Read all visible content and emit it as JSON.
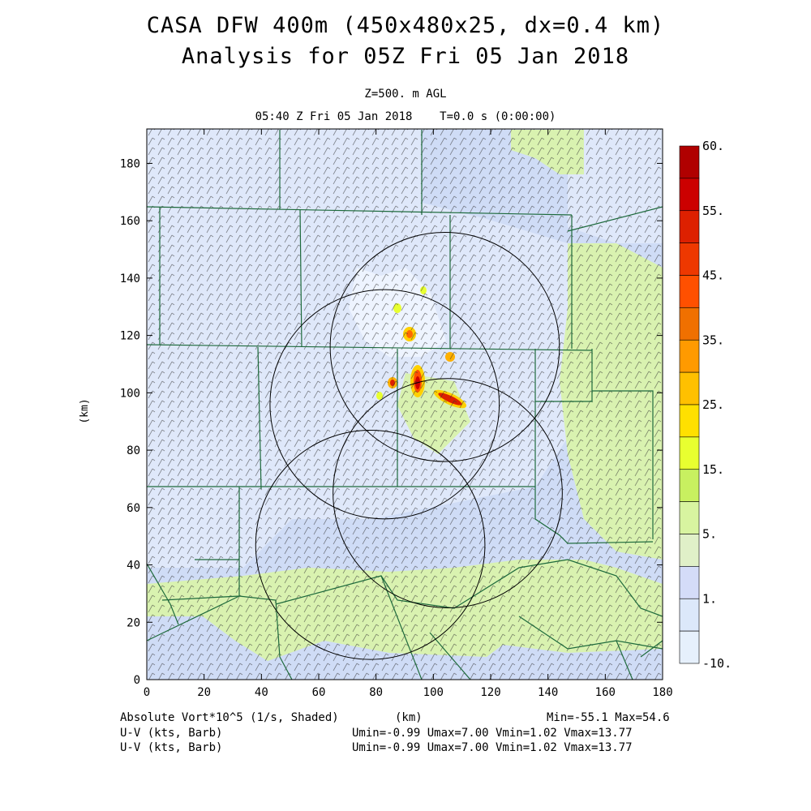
{
  "header": {
    "title_line1": "CASA DFW 400m (450x480x25, dx=0.4 km)",
    "title_line2": "Analysis for 05Z Fri 05 Jan 2018",
    "level": "Z=500. m AGL",
    "valid_time": "05:40 Z Fri 05 Jan 2018    T=0.0 s (0:00:00)"
  },
  "axes": {
    "x_ticks": [
      "0",
      "20",
      "40",
      "60",
      "80",
      "100",
      "120",
      "140",
      "160",
      "180"
    ],
    "y_ticks": [
      "0",
      "20",
      "40",
      "60",
      "80",
      "100",
      "120",
      "140",
      "160",
      "180"
    ],
    "xlabel": "(km)",
    "ylabel": "(km)",
    "xlim": [
      0,
      180
    ],
    "ylim": [
      0,
      192
    ]
  },
  "colorbar": {
    "labels": [
      "60.",
      "55.",
      "45.",
      "35.",
      "25.",
      "15.",
      "5.",
      "1.",
      "-10."
    ],
    "colors": [
      "#b00000",
      "#cc0000",
      "#dd2000",
      "#ee3800",
      "#ff5000",
      "#f07000",
      "#ff9a00",
      "#ffc000",
      "#ffe000",
      "#e8ff30",
      "#c8f060",
      "#d8f4a0",
      "#e0f0c8",
      "#d4dcf8",
      "#dce8fa",
      "#e6f0fc"
    ]
  },
  "footer": {
    "field": "Absolute Vort*10^5 (1/s, Shaded)",
    "unit": "(km)",
    "minmax": "Min=-55.1 Max=54.6",
    "uv_label_1": "U-V (kts, Barb)",
    "uv_label_2": "U-V (kts, Barb)",
    "uv_stats_1": "Umin=-0.99 Umax=7.00 Vmin=1.02 Vmax=13.77",
    "uv_stats_2": "Umin=-0.99 Umax=7.00 Vmin=1.02 Vmax=13.77"
  },
  "map": {
    "radar_rings": [
      {
        "x": 104,
        "y": 116,
        "r": 40
      },
      {
        "x": 83,
        "y": 96,
        "r": 40
      },
      {
        "x": 105,
        "y": 65,
        "r": 40
      },
      {
        "x": 78,
        "y": 47,
        "r": 40
      }
    ]
  }
}
